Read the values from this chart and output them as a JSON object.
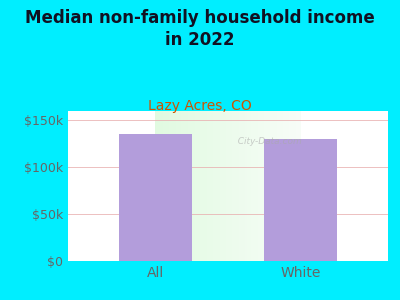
{
  "title": "Median non-family household income\nin 2022",
  "subtitle": "Lazy Acres, CO",
  "categories": [
    "All",
    "White"
  ],
  "values": [
    135000,
    130000
  ],
  "bar_color": "#b39ddb",
  "background_outer": "#00eeff",
  "ylabel_ticks": [
    "$0",
    "$50k",
    "$100k",
    "$150k"
  ],
  "ytick_values": [
    0,
    50000,
    100000,
    150000
  ],
  "ylim": [
    0,
    160000
  ],
  "title_fontsize": 12,
  "subtitle_fontsize": 10,
  "tick_fontsize": 9,
  "title_color": "#111122",
  "subtitle_color": "#cc5500",
  "tick_color": "#666666",
  "grid_color": "#e8b0b0",
  "watermark": "  City-Data.com"
}
